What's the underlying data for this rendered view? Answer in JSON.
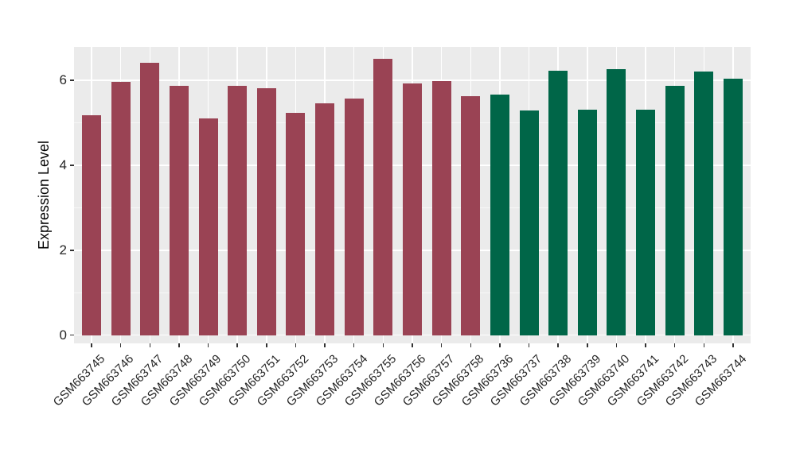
{
  "chart_data": {
    "type": "bar",
    "title": "",
    "xlabel": "",
    "ylabel": "Expression Level",
    "ylim": [
      0,
      6.8
    ],
    "yticks_major": [
      0,
      2,
      4,
      6
    ],
    "yticks_minor": [
      1,
      3,
      5
    ],
    "grid": "on",
    "legend": "none",
    "panel_bg": "#EBEBEB",
    "grid_color": "#FFFFFF",
    "axis_text_color": "#262626",
    "categories": [
      "GSM663745",
      "GSM663746",
      "GSM663747",
      "GSM663748",
      "GSM663749",
      "GSM663750",
      "GSM663751",
      "GSM663752",
      "GSM663753",
      "GSM663754",
      "GSM663755",
      "GSM663756",
      "GSM663757",
      "GSM663758",
      "GSM663736",
      "GSM663737",
      "GSM663738",
      "GSM663739",
      "GSM663740",
      "GSM663741",
      "GSM663742",
      "GSM663743",
      "GSM663744"
    ],
    "values": [
      5.18,
      5.96,
      6.41,
      5.87,
      5.1,
      5.87,
      5.82,
      5.24,
      5.46,
      5.57,
      6.5,
      5.93,
      5.99,
      5.62,
      5.66,
      5.28,
      6.22,
      5.31,
      6.26,
      5.31,
      5.87,
      6.2,
      6.04
    ],
    "groups": [
      "maroon",
      "maroon",
      "maroon",
      "maroon",
      "maroon",
      "maroon",
      "maroon",
      "maroon",
      "maroon",
      "maroon",
      "maroon",
      "maroon",
      "maroon",
      "maroon",
      "green",
      "green",
      "green",
      "green",
      "green",
      "green",
      "green",
      "green",
      "green"
    ],
    "group_colors": {
      "maroon": "#9A4354",
      "green": "#006648"
    }
  }
}
